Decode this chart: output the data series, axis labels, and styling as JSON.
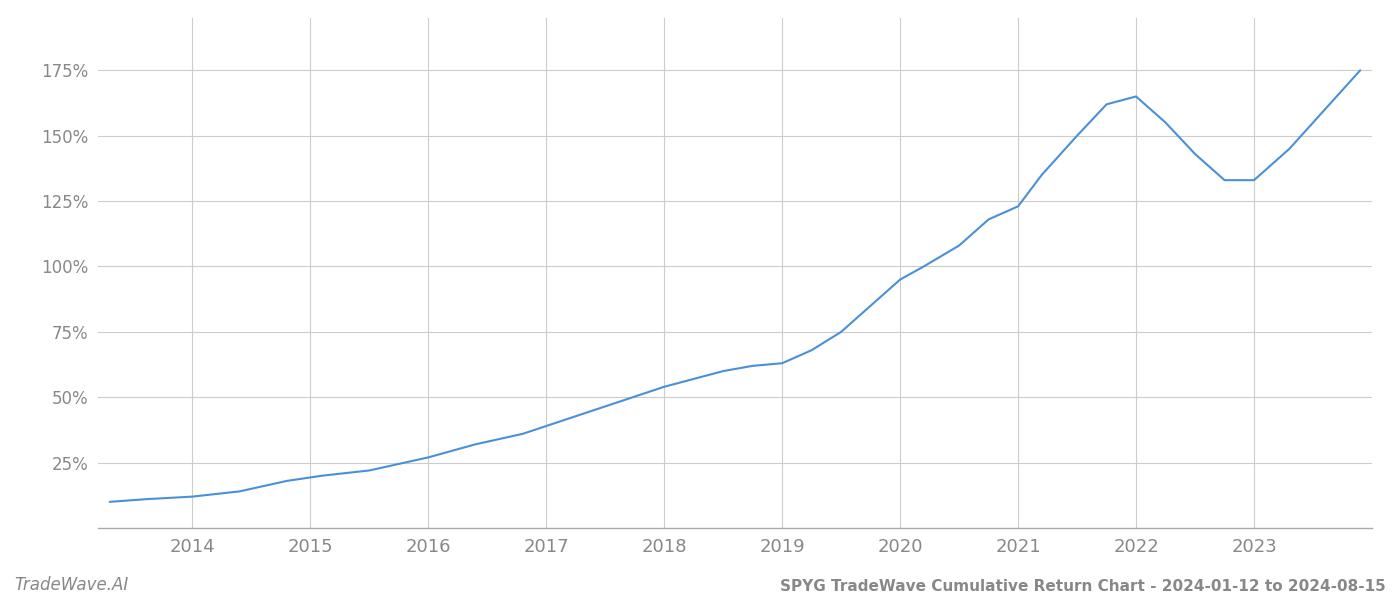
{
  "title": "SPYG TradeWave Cumulative Return Chart - 2024-01-12 to 2024-08-15",
  "footer_left": "TradeWave.AI",
  "line_color": "#4a90d9",
  "background_color": "#ffffff",
  "grid_color": "#cccccc",
  "text_color": "#888888",
  "x_years": [
    2013.3,
    2013.6,
    2014.0,
    2014.4,
    2014.8,
    2015.1,
    2015.5,
    2016.0,
    2016.4,
    2016.8,
    2017.2,
    2017.6,
    2018.0,
    2018.25,
    2018.5,
    2018.75,
    2019.0,
    2019.25,
    2019.5,
    2019.75,
    2020.0,
    2020.2,
    2020.5,
    2020.75,
    2021.0,
    2021.2,
    2021.5,
    2021.75,
    2022.0,
    2022.25,
    2022.5,
    2022.75,
    2023.0,
    2023.3,
    2023.6,
    2023.9
  ],
  "y_values": [
    10,
    11,
    12,
    14,
    18,
    20,
    22,
    27,
    32,
    36,
    42,
    48,
    54,
    57,
    60,
    62,
    63,
    68,
    75,
    85,
    95,
    100,
    108,
    118,
    123,
    135,
    150,
    162,
    165,
    155,
    143,
    133,
    133,
    145,
    160,
    175
  ],
  "yticks": [
    25,
    50,
    75,
    100,
    125,
    150,
    175
  ],
  "xticks": [
    2014,
    2015,
    2016,
    2017,
    2018,
    2019,
    2020,
    2021,
    2022,
    2023
  ],
  "xlim": [
    2013.2,
    2024.0
  ],
  "ylim": [
    0,
    195
  ],
  "line_width": 1.5,
  "title_fontsize": 11,
  "tick_fontsize": 13,
  "footer_fontsize": 12
}
